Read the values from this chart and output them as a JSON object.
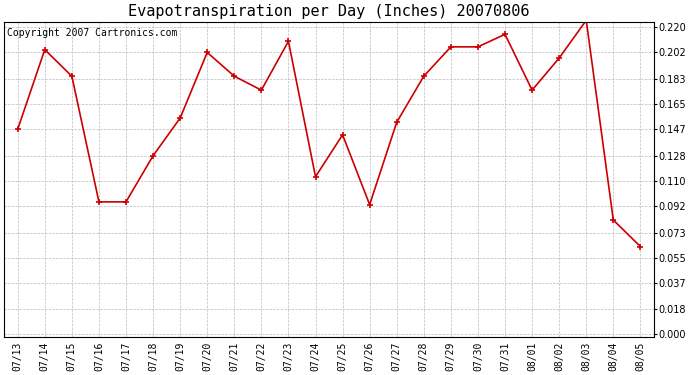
{
  "title": "Evapotranspiration per Day (Inches) 20070806",
  "copyright_text": "Copyright 2007 Cartronics.com",
  "dates": [
    "07/13",
    "07/14",
    "07/15",
    "07/16",
    "07/17",
    "07/18",
    "07/19",
    "07/20",
    "07/21",
    "07/22",
    "07/23",
    "07/24",
    "07/25",
    "07/26",
    "07/27",
    "07/28",
    "07/29",
    "07/30",
    "07/31",
    "08/01",
    "08/02",
    "08/03",
    "08/04",
    "08/05"
  ],
  "values": [
    0.147,
    0.204,
    0.185,
    0.095,
    0.095,
    0.128,
    0.155,
    0.202,
    0.185,
    0.175,
    0.21,
    0.113,
    0.143,
    0.093,
    0.152,
    0.185,
    0.206,
    0.206,
    0.215,
    0.175,
    0.198,
    0.225,
    0.082,
    0.063
  ],
  "line_color": "#cc0000",
  "marker": "+",
  "marker_size": 5,
  "marker_linewidth": 1.2,
  "line_width": 1.2,
  "background_color": "#ffffff",
  "grid_color": "#bbbbbb",
  "yticks": [
    0.0,
    0.018,
    0.037,
    0.055,
    0.073,
    0.092,
    0.11,
    0.128,
    0.147,
    0.165,
    0.183,
    0.202,
    0.22
  ],
  "ylim_min": -0.002,
  "ylim_max": 0.224,
  "title_fontsize": 11,
  "copyright_fontsize": 7,
  "tick_fontsize": 7,
  "fig_width": 6.9,
  "fig_height": 3.75,
  "dpi": 100
}
